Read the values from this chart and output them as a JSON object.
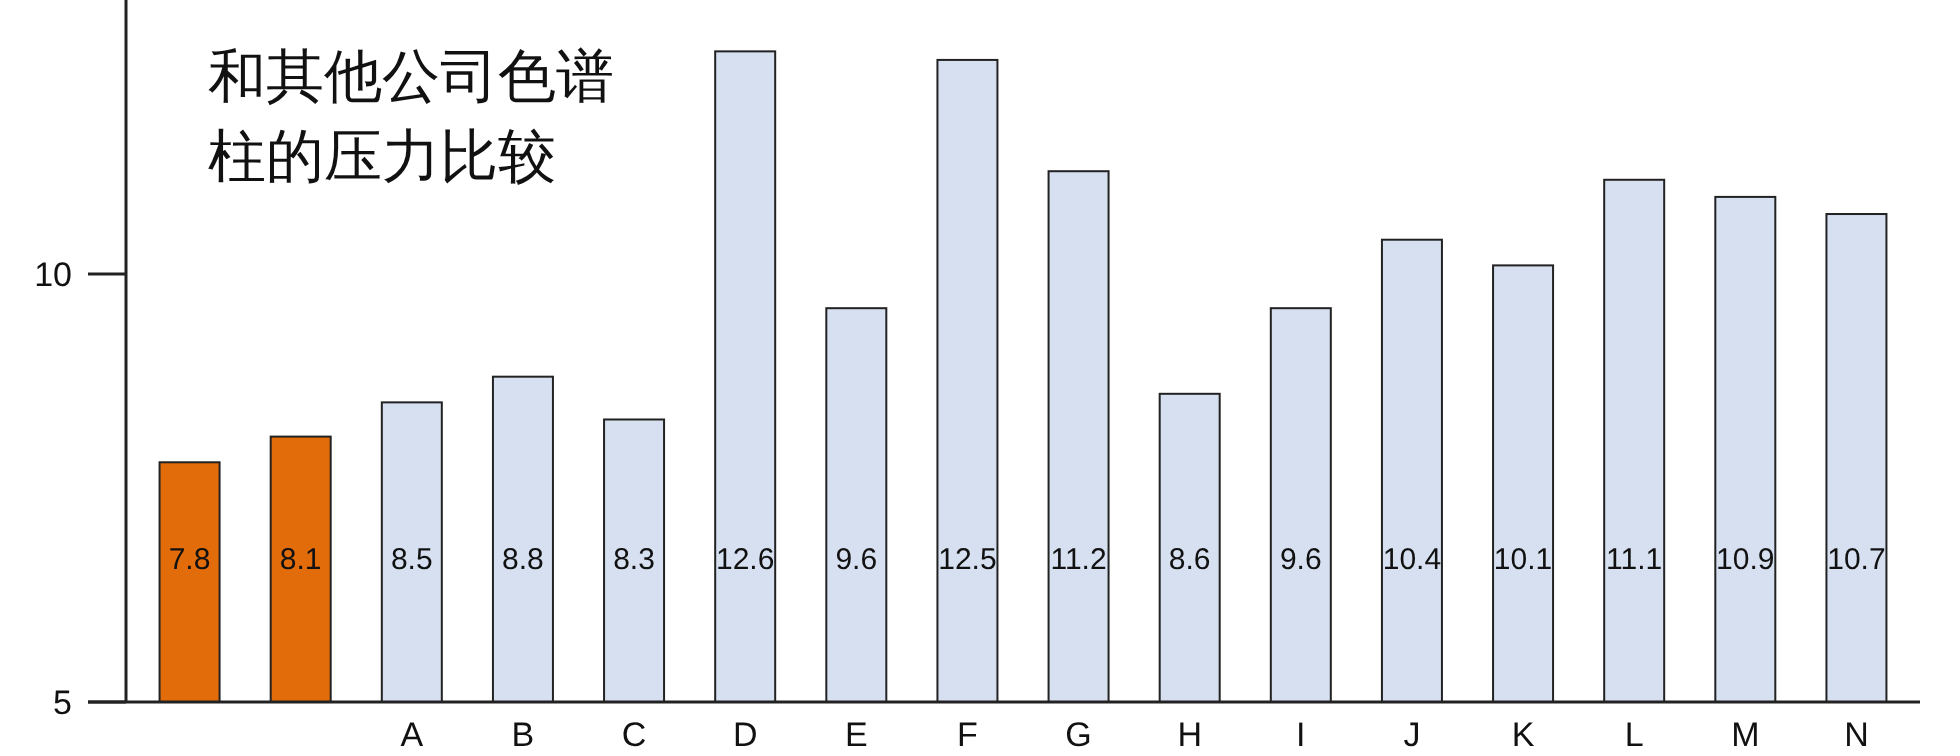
{
  "chart_data": {
    "type": "bar",
    "title": "和其他公司色谱柱的压力比较",
    "categories": [
      null,
      null,
      "A",
      "B",
      "C",
      "D",
      "E",
      "F",
      "G",
      "H",
      "I",
      "J",
      "K",
      "L",
      "M",
      "N"
    ],
    "values": [
      7.8,
      8.1,
      8.5,
      8.8,
      8.3,
      12.6,
      9.6,
      12.5,
      11.2,
      8.6,
      9.6,
      10.4,
      10.1,
      11.1,
      10.9,
      10.7
    ],
    "colors": [
      "#e36c0a",
      "#e36c0a",
      "#d6e0f0",
      "#d6e0f0",
      "#d6e0f0",
      "#d6e0f0",
      "#d6e0f0",
      "#d6e0f0",
      "#d6e0f0",
      "#d6e0f0",
      "#d6e0f0",
      "#d6e0f0",
      "#d6e0f0",
      "#d6e0f0",
      "#d6e0f0",
      "#d6e0f0"
    ],
    "ylim": [
      5,
      13.2
    ],
    "yticks": [
      5,
      10
    ],
    "data_labels": true
  }
}
